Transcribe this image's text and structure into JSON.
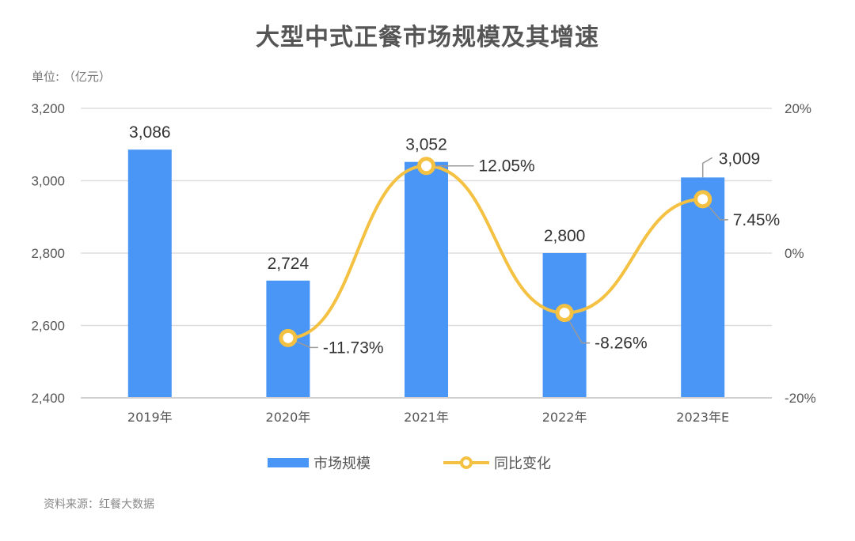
{
  "title": "大型中式正餐市场规模及其增速",
  "unit_label": "单位: （亿元）",
  "source_label": "资料来源：红餐大数据",
  "colors": {
    "bar": "#4a96f6",
    "line": "#f4c142",
    "grid": "#dddddd",
    "text": "#333333",
    "axis_text": "#555555"
  },
  "legend": {
    "bar_label": "市场规模",
    "line_label": "同比变化"
  },
  "axes": {
    "left_ticks": [
      "3,200",
      "3,000",
      "2,800",
      "2,600",
      "2,400"
    ],
    "right_ticks": [
      "20%",
      "0%",
      "-20%"
    ]
  },
  "chart_data": {
    "type": "bar+line",
    "title": "大型中式正餐市场规模及其增速",
    "categories": [
      "2019年",
      "2020年",
      "2021年",
      "2022年",
      "2023年E"
    ],
    "series": [
      {
        "name": "市场规模",
        "type": "bar",
        "axis": "left",
        "values": [
          3086,
          2724,
          3052,
          2800,
          3009
        ],
        "labels": [
          "3,086",
          "2,724",
          "3,052",
          "2,800",
          "3,009"
        ]
      },
      {
        "name": "同比变化",
        "type": "line",
        "axis": "right",
        "smooth": true,
        "values": [
          null,
          -11.73,
          12.05,
          -8.26,
          7.45
        ],
        "labels": [
          "",
          "-11.73%",
          "12.05%",
          "-8.26%",
          "7.45%"
        ]
      }
    ],
    "ylabel": "单位: （亿元）",
    "ylim_left": [
      2400,
      3200
    ],
    "yticks_left": [
      2400,
      2600,
      2800,
      3000,
      3200
    ],
    "ylim_right": [
      -20,
      20
    ],
    "yticks_right": [
      -20,
      0,
      20
    ],
    "grid": true,
    "legend_position": "bottom",
    "source": "资料来源：红餐大数据"
  }
}
